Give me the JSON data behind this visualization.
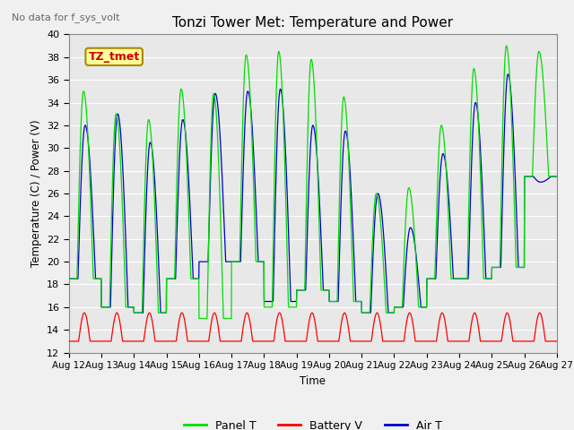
{
  "title": "Tonzi Tower Met: Temperature and Power",
  "subtitle": "No data for f_sys_volt",
  "ylabel": "Temperature (C) / Power (V)",
  "xlabel": "Time",
  "ylim": [
    12,
    40
  ],
  "yticks": [
    12,
    14,
    16,
    18,
    20,
    22,
    24,
    26,
    28,
    30,
    32,
    34,
    36,
    38,
    40
  ],
  "xtick_labels": [
    "Aug 12",
    "Aug 13",
    "Aug 14",
    "Aug 15",
    "Aug 16",
    "Aug 17",
    "Aug 18",
    "Aug 19",
    "Aug 20",
    "Aug 21",
    "Aug 22",
    "Aug 23",
    "Aug 24",
    "Aug 25",
    "Aug 26",
    "Aug 27"
  ],
  "num_days": 15,
  "panel_color": "#00dd00",
  "battery_color": "#ff0000",
  "air_color": "#0000cc",
  "bg_color": "#e8e8e8",
  "plot_bg": "#e8e8e8",
  "grid_color": "#ffffff",
  "annotation_box": "TZ_tmet",
  "annotation_color": "#cc0000",
  "annotation_bg": "#ffff99",
  "legend_items": [
    "Panel T",
    "Battery V",
    "Air T"
  ],
  "peak_heights": [
    35.0,
    33.0,
    32.5,
    35.2,
    34.8,
    38.2,
    38.5,
    37.8,
    34.5,
    26.0,
    26.5,
    32.0,
    37.0,
    39.0,
    38.5
  ],
  "trough_values": [
    18.5,
    16.0,
    15.5,
    18.5,
    15.0,
    20.0,
    16.0,
    17.5,
    16.5,
    15.5,
    16.0,
    18.5,
    18.5,
    19.5,
    27.5
  ],
  "air_peak_heights": [
    32.0,
    33.0,
    30.5,
    32.5,
    34.8,
    35.0,
    35.2,
    32.0,
    31.5,
    26.0,
    23.0,
    29.5,
    34.0,
    36.5,
    27.0
  ],
  "air_trough_values": [
    18.5,
    16.0,
    15.5,
    18.5,
    20.0,
    20.0,
    16.5,
    17.5,
    16.5,
    15.5,
    16.0,
    18.5,
    18.5,
    19.5,
    27.5
  ]
}
